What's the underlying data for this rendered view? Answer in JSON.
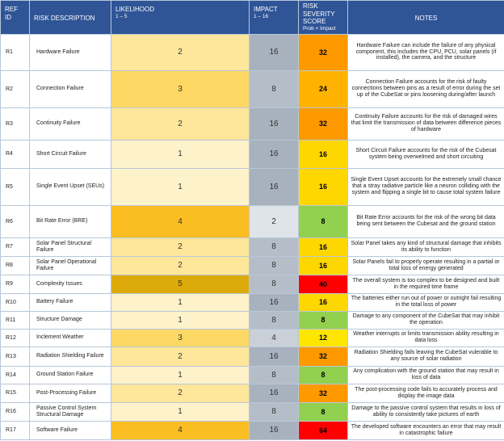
{
  "header": {
    "ref_id": "REF ID",
    "risk_description": "RISK DESCRIPTION",
    "likelihood": "LIKELIHOOD",
    "likelihood_range": "1 – 5",
    "impact": "IMPACT",
    "impact_range": "1 – 16",
    "severity": "RISK SEVERITY SCORE",
    "severity_formula": "Prob × Impact",
    "notes": "NOTES"
  },
  "likelihood_colors": {
    "1": "#fef2cb",
    "2": "#fee69a",
    "3": "#fdd865",
    "4": "#fbbe22",
    "5": "#dcaa0a"
  },
  "impact_colors": {
    "2": "#dfe4ea",
    "4": "#c9d0d8",
    "8": "#b5bec8",
    "16": "#a7b2be"
  },
  "score_colors": {
    "8": "#92d050",
    "12": "#ffe600",
    "16": "#ffd700",
    "24": "#ffb300",
    "32": "#ff9900",
    "40": "#ff0000",
    "64": "#ff0000"
  },
  "rows": [
    {
      "id": "R1",
      "description": "Hardware Failure",
      "likelihood": "2",
      "impact": "16",
      "score": "32",
      "notes": "Hardware Failure can include the failure of any physical component, this includes the CPU, PCU, solar panels (if installed), the camera, and the structure"
    },
    {
      "id": "R2",
      "description": "Connection Failure",
      "likelihood": "3",
      "impact": "8",
      "score": "24",
      "notes": "Connection Failure accounts for the risk of faulty connections between pins as a result of error during the set up of the CubeSat or pins loosening during/after launch"
    },
    {
      "id": "R3",
      "description": "Continuity Failure",
      "likelihood": "2",
      "impact": "16",
      "score": "32",
      "notes": "Continuity Failure accounts for the risk of damaged wires that limit the transmission of data between difference pieces of hardware"
    },
    {
      "id": "R4",
      "description": "Short Circuit Failure",
      "likelihood": "1",
      "impact": "16",
      "score": "16",
      "notes": "Short Circuit Failure accounts for the risk of the Cubesat system being overwelmed and short circuiting"
    },
    {
      "id": "R5",
      "description": "Single Event Upset (SEUs)",
      "likelihood": "1",
      "impact": "16",
      "score": "16",
      "notes": "Single Event Upset accounts for the extremely small chance that a stray radiative particle like a neuron colliding with the system and flipping a single bit to cause total system failure"
    },
    {
      "id": "R6",
      "description": "Bit Rate Error (BRE)",
      "likelihood": "4",
      "impact": "2",
      "score": "8",
      "notes": "Bit Rate Error accounts for the risk of the wrong bit data being sent between the Cubesat and the ground station"
    },
    {
      "id": "R7",
      "description": "Solar Panel Structural Failure",
      "likelihood": "2",
      "impact": "8",
      "score": "16",
      "notes": "Solar Panel takes any kind of structural damage that inhibits its ability to function"
    },
    {
      "id": "R8",
      "description": "Solar Panel Operational Failure",
      "likelihood": "2",
      "impact": "8",
      "score": "16",
      "notes": "Solar Panels fail to properly operate resulting in a partial or total loss of energy generated"
    },
    {
      "id": "R9",
      "description": "Complexity Issues",
      "likelihood": "5",
      "impact": "8",
      "score": "40",
      "notes": "The overall system is too complex to be designed and built in the required time frame"
    },
    {
      "id": "R10",
      "description": "Battery Failure",
      "likelihood": "1",
      "impact": "16",
      "score": "16",
      "notes": "The batteries either run out of power or outright fail resulting in the total loss of power"
    },
    {
      "id": "R11",
      "description": "Structure Damage",
      "likelihood": "1",
      "impact": "8",
      "score": "8",
      "notes": "Damage to any component of the CubeSat that may inhibit the operation"
    },
    {
      "id": "R12",
      "description": "Inclement Weather",
      "likelihood": "3",
      "impact": "4",
      "score": "12",
      "notes": "Weather interrupts or limits transmission ability resulting in data loss"
    },
    {
      "id": "R13",
      "description": "Radiation Shielding Failure",
      "likelihood": "2",
      "impact": "16",
      "score": "32",
      "notes": "Radiation Shielding fails leaving the CubeSat vulerable to any source of solar radiation"
    },
    {
      "id": "R14",
      "description": "Ground Station Failure",
      "likelihood": "1",
      "impact": "8",
      "score": "8",
      "notes": "Any complication with the ground station that may result in loss of data"
    },
    {
      "id": "R15",
      "description": "Post-Processing Failure",
      "likelihood": "2",
      "impact": "16",
      "score": "32",
      "notes": "The post-processing code fails to accurately process and display the image data"
    },
    {
      "id": "R16",
      "description": "Passive Control System Structural Damage",
      "likelihood": "1",
      "impact": "8",
      "score": "8",
      "notes": "Damage to the passive control system that results in loss of ability to consistently take pictures of earth"
    },
    {
      "id": "R17",
      "description": "Software Failure",
      "likelihood": "4",
      "impact": "16",
      "score": "64",
      "notes": "The developed software encounters an error that may result in catastrophic failure"
    }
  ]
}
